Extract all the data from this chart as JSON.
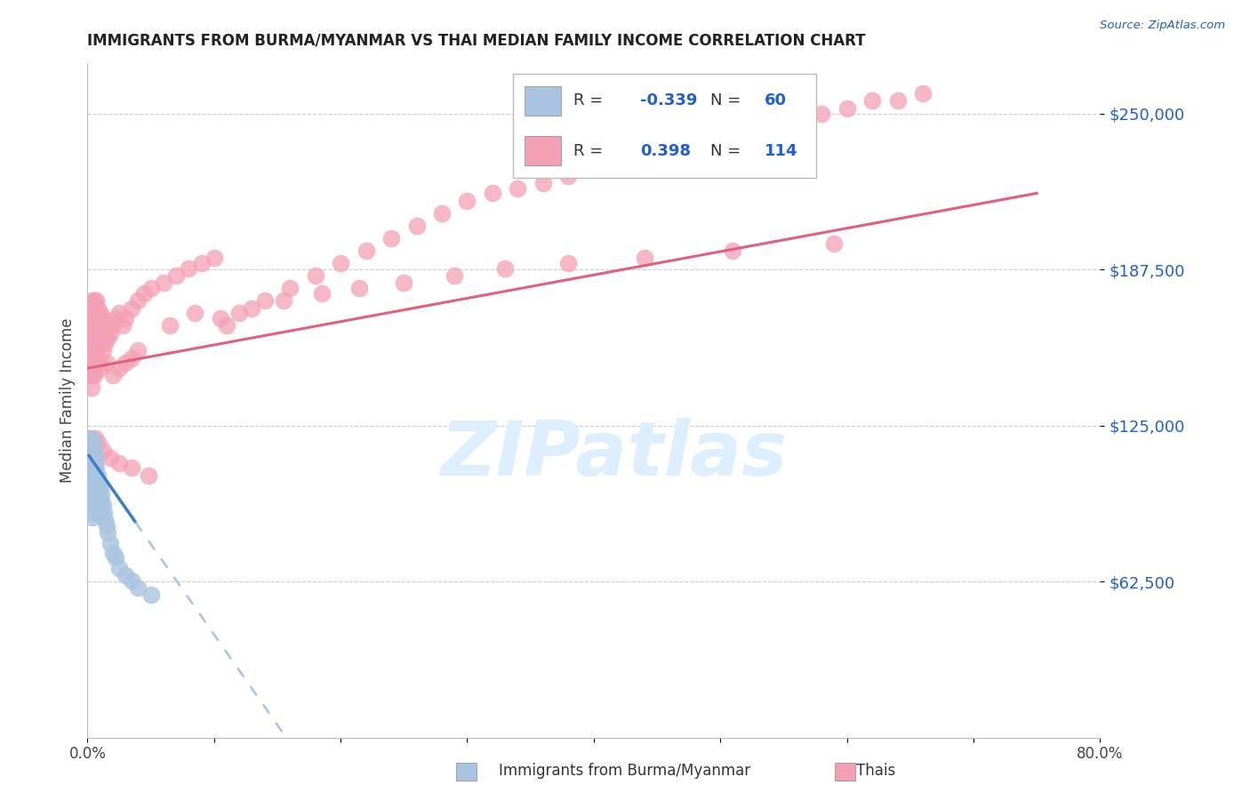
{
  "title": "IMMIGRANTS FROM BURMA/MYANMAR VS THAI MEDIAN FAMILY INCOME CORRELATION CHART",
  "source": "Source: ZipAtlas.com",
  "ylabel": "Median Family Income",
  "ytick_values": [
    62500,
    125000,
    187500,
    250000
  ],
  "ymin": 0,
  "ymax": 270000,
  "xmin": 0.0,
  "xmax": 0.8,
  "legend_labels": [
    "Immigrants from Burma/Myanmar",
    "Thais"
  ],
  "r_burma": -0.339,
  "n_burma": 60,
  "r_thai": 0.398,
  "n_thai": 114,
  "burma_color": "#a8c4e0",
  "thai_color": "#f4a0b4",
  "burma_line_color": "#3a7fc1",
  "thai_line_color": "#e06080",
  "burma_line_ext_color": "#a8c4e0",
  "background_color": "#ffffff",
  "grid_color": "#cccccc",
  "watermark_color": "#ddeeff",
  "burma_scatter_x": [
    0.001,
    0.001,
    0.001,
    0.002,
    0.002,
    0.002,
    0.002,
    0.002,
    0.003,
    0.003,
    0.003,
    0.003,
    0.003,
    0.003,
    0.004,
    0.004,
    0.004,
    0.004,
    0.004,
    0.004,
    0.004,
    0.005,
    0.005,
    0.005,
    0.005,
    0.005,
    0.005,
    0.006,
    0.006,
    0.006,
    0.006,
    0.006,
    0.007,
    0.007,
    0.007,
    0.007,
    0.008,
    0.008,
    0.008,
    0.008,
    0.009,
    0.009,
    0.01,
    0.01,
    0.01,
    0.011,
    0.011,
    0.012,
    0.013,
    0.014,
    0.015,
    0.016,
    0.018,
    0.02,
    0.022,
    0.025,
    0.03,
    0.035,
    0.04,
    0.05
  ],
  "burma_scatter_y": [
    115000,
    110000,
    105000,
    118000,
    112000,
    108000,
    103000,
    98000,
    120000,
    115000,
    110000,
    105000,
    100000,
    95000,
    118000,
    113000,
    108000,
    103000,
    98000,
    93000,
    88000,
    115000,
    110000,
    105000,
    100000,
    95000,
    90000,
    112000,
    107000,
    102000,
    97000,
    92000,
    108000,
    103000,
    98000,
    93000,
    105000,
    100000,
    95000,
    90000,
    102000,
    97000,
    100000,
    95000,
    90000,
    97000,
    92000,
    93000,
    90000,
    87000,
    85000,
    82000,
    78000,
    74000,
    72000,
    68000,
    65000,
    63000,
    60000,
    57000
  ],
  "thai_scatter_x": [
    0.001,
    0.001,
    0.002,
    0.002,
    0.002,
    0.003,
    0.003,
    0.003,
    0.003,
    0.004,
    0.004,
    0.004,
    0.004,
    0.005,
    0.005,
    0.005,
    0.005,
    0.006,
    0.006,
    0.006,
    0.007,
    0.007,
    0.007,
    0.008,
    0.008,
    0.008,
    0.009,
    0.009,
    0.01,
    0.01,
    0.01,
    0.011,
    0.012,
    0.012,
    0.013,
    0.014,
    0.015,
    0.016,
    0.018,
    0.02,
    0.022,
    0.025,
    0.028,
    0.03,
    0.035,
    0.04,
    0.045,
    0.05,
    0.06,
    0.07,
    0.08,
    0.09,
    0.1,
    0.11,
    0.12,
    0.14,
    0.16,
    0.18,
    0.2,
    0.22,
    0.24,
    0.26,
    0.28,
    0.3,
    0.32,
    0.34,
    0.36,
    0.38,
    0.4,
    0.42,
    0.44,
    0.46,
    0.48,
    0.5,
    0.52,
    0.54,
    0.56,
    0.58,
    0.6,
    0.62,
    0.64,
    0.66,
    0.005,
    0.01,
    0.015,
    0.02,
    0.025,
    0.03,
    0.035,
    0.04,
    0.002,
    0.003,
    0.004,
    0.006,
    0.008,
    0.012,
    0.018,
    0.025,
    0.035,
    0.048,
    0.065,
    0.085,
    0.105,
    0.13,
    0.155,
    0.185,
    0.215,
    0.25,
    0.29,
    0.33,
    0.38,
    0.44,
    0.51,
    0.59
  ],
  "thai_scatter_y": [
    155000,
    148000,
    165000,
    158000,
    145000,
    170000,
    160000,
    150000,
    140000,
    175000,
    165000,
    155000,
    145000,
    175000,
    168000,
    158000,
    148000,
    170000,
    160000,
    150000,
    175000,
    165000,
    155000,
    172000,
    162000,
    152000,
    168000,
    158000,
    170000,
    160000,
    150000,
    165000,
    168000,
    155000,
    162000,
    158000,
    165000,
    160000,
    162000,
    165000,
    168000,
    170000,
    165000,
    168000,
    172000,
    175000,
    178000,
    180000,
    182000,
    185000,
    188000,
    190000,
    192000,
    165000,
    170000,
    175000,
    180000,
    185000,
    190000,
    195000,
    200000,
    205000,
    210000,
    215000,
    218000,
    220000,
    222000,
    225000,
    228000,
    230000,
    232000,
    235000,
    238000,
    240000,
    240000,
    245000,
    248000,
    250000,
    252000,
    255000,
    255000,
    258000,
    145000,
    148000,
    150000,
    145000,
    148000,
    150000,
    152000,
    155000,
    120000,
    118000,
    115000,
    120000,
    118000,
    115000,
    112000,
    110000,
    108000,
    105000,
    165000,
    170000,
    168000,
    172000,
    175000,
    178000,
    180000,
    182000,
    185000,
    188000,
    190000,
    192000,
    195000,
    198000
  ]
}
